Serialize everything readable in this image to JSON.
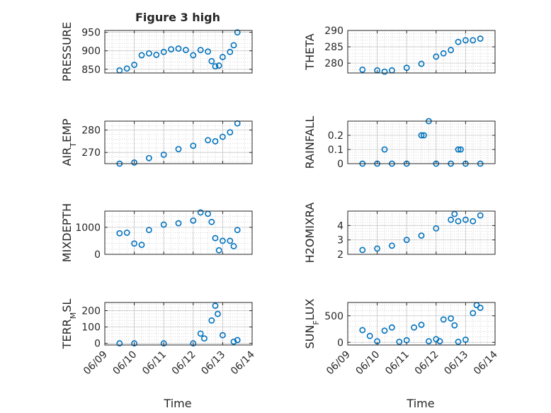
{
  "figure_title": "Figure 3 high",
  "colors": {
    "marker": "#0072BD",
    "axes": "#262626",
    "grid": "#c8c8c8"
  },
  "x_axis": {
    "label": "Time",
    "range": [
      "06/09",
      "06/14"
    ],
    "tick_labels": [
      "06/09",
      "06/10",
      "06/11",
      "06/12",
      "06/13",
      "06/14"
    ]
  },
  "chart_data": [
    {
      "type": "scatter",
      "ylabel": "PRESSURE",
      "ylim": [
        840,
        955
      ],
      "yticks": [
        850,
        900,
        950
      ],
      "grid": true,
      "minor_grid": true,
      "x": [
        "06/09 12:00",
        "06/09 18:00",
        "06/10 00:00",
        "06/10 06:00",
        "06/10 12:00",
        "06/10 18:00",
        "06/11 00:00",
        "06/11 06:00",
        "06/11 12:00",
        "06/11 18:00",
        "06/12 00:00",
        "06/12 06:00",
        "06/12 12:00",
        "06/12 15:00",
        "06/12 18:00",
        "06/12 21:00",
        "06/13 00:00",
        "06/13 06:00",
        "06/13 09:00",
        "06/13 12:00"
      ],
      "values": [
        847,
        852,
        862,
        888,
        893,
        889,
        897,
        904,
        906,
        902,
        888,
        902,
        898,
        872,
        858,
        860,
        883,
        897,
        915,
        950
      ]
    },
    {
      "type": "scatter",
      "ylabel": "THETA",
      "ylim": [
        277,
        290
      ],
      "yticks": [
        280,
        285,
        290
      ],
      "grid": true,
      "minor_grid": true,
      "x": [
        "06/09 12:00",
        "06/10 00:00",
        "06/10 06:00",
        "06/10 12:00",
        "06/11 00:00",
        "06/11 12:00",
        "06/12 00:00",
        "06/12 06:00",
        "06/12 12:00",
        "06/12 18:00",
        "06/13 00:00",
        "06/13 06:00",
        "06/13 12:00"
      ],
      "values": [
        278.0,
        277.8,
        277.4,
        277.8,
        278.6,
        279.8,
        282.0,
        283.0,
        284.0,
        286.5,
        287.0,
        287.0,
        287.5
      ]
    },
    {
      "type": "scatter",
      "ylabel": "AIR_TEMP",
      "ylim": [
        265,
        284
      ],
      "yticks": [
        270,
        280
      ],
      "grid": true,
      "minor_grid": true,
      "x": [
        "06/09 12:00",
        "06/10 00:00",
        "06/10 12:00",
        "06/11 00:00",
        "06/11 12:00",
        "06/12 00:00",
        "06/12 12:00",
        "06/12 18:00",
        "06/13 00:00",
        "06/13 06:00",
        "06/13 12:00"
      ],
      "values": [
        265.0,
        265.5,
        267.5,
        269.0,
        271.5,
        273.0,
        275.5,
        275.0,
        277.0,
        279.0,
        283.0
      ]
    },
    {
      "type": "scatter",
      "ylabel": "RAINFALL",
      "ylim": [
        0,
        0.3
      ],
      "yticks": [
        0,
        0.1,
        0.2
      ],
      "grid": true,
      "minor_grid": true,
      "x": [
        "06/09 12:00",
        "06/10 00:00",
        "06/10 06:00",
        "06/10 12:00",
        "06/11 00:00",
        "06/11 12:00",
        "06/11 14:00",
        "06/11 18:00",
        "06/12 00:00",
        "06/12 12:00",
        "06/12 18:00",
        "06/12 20:00",
        "06/13 00:00",
        "06/13 12:00"
      ],
      "values": [
        0,
        0,
        0.1,
        0,
        0,
        0.2,
        0.2,
        0.3,
        0,
        0,
        0.1,
        0.1,
        0,
        0
      ]
    },
    {
      "type": "scatter",
      "ylabel": "MIXDEPTH",
      "ylim": [
        0,
        1600
      ],
      "yticks": [
        0,
        1000
      ],
      "grid": true,
      "minor_grid": true,
      "x": [
        "06/09 12:00",
        "06/09 18:00",
        "06/10 00:00",
        "06/10 06:00",
        "06/10 12:00",
        "06/11 00:00",
        "06/11 12:00",
        "06/12 00:00",
        "06/12 06:00",
        "06/12 12:00",
        "06/12 15:00",
        "06/12 18:00",
        "06/12 21:00",
        "06/13 00:00",
        "06/13 06:00",
        "06/13 09:00",
        "06/13 12:00"
      ],
      "values": [
        780,
        800,
        400,
        350,
        900,
        1100,
        1150,
        1250,
        1550,
        1500,
        1200,
        600,
        150,
        500,
        500,
        300,
        900
      ]
    },
    {
      "type": "scatter",
      "ylabel": "H2OMIXRA",
      "ylim": [
        2,
        5
      ],
      "yticks": [
        2,
        3,
        4
      ],
      "grid": true,
      "minor_grid": true,
      "x": [
        "06/09 12:00",
        "06/10 00:00",
        "06/10 12:00",
        "06/11 00:00",
        "06/11 12:00",
        "06/12 00:00",
        "06/12 12:00",
        "06/12 15:00",
        "06/12 18:00",
        "06/13 00:00",
        "06/13 06:00",
        "06/13 12:00"
      ],
      "values": [
        2.3,
        2.4,
        2.6,
        3.0,
        3.3,
        3.8,
        4.4,
        4.8,
        4.3,
        4.4,
        4.3,
        4.7
      ]
    },
    {
      "type": "scatter",
      "ylabel": "TERR_MSL",
      "ylim": [
        -10,
        250
      ],
      "yticks": [
        0,
        100,
        200
      ],
      "grid": true,
      "minor_grid": true,
      "x": [
        "06/09 12:00",
        "06/10 00:00",
        "06/11 00:00",
        "06/12 00:00",
        "06/12 06:00",
        "06/12 09:00",
        "06/12 15:00",
        "06/12 18:00",
        "06/12 20:00",
        "06/13 00:00",
        "06/13 09:00",
        "06/13 12:00"
      ],
      "values": [
        0,
        0,
        0,
        0,
        60,
        30,
        140,
        230,
        180,
        50,
        10,
        20
      ]
    },
    {
      "type": "scatter",
      "ylabel": "SUN_FLUX",
      "ylim": [
        -50,
        750
      ],
      "yticks": [
        0,
        500
      ],
      "grid": true,
      "minor_grid": true,
      "x": [
        "06/09 12:00",
        "06/09 18:00",
        "06/10 00:00",
        "06/10 06:00",
        "06/10 12:00",
        "06/10 18:00",
        "06/11 00:00",
        "06/11 06:00",
        "06/11 12:00",
        "06/11 18:00",
        "06/12 00:00",
        "06/12 03:00",
        "06/12 06:00",
        "06/12 12:00",
        "06/12 15:00",
        "06/12 18:00",
        "06/13 00:00",
        "06/13 06:00",
        "06/13 09:00",
        "06/13 12:00"
      ],
      "values": [
        230,
        120,
        20,
        220,
        280,
        10,
        40,
        280,
        330,
        20,
        60,
        20,
        430,
        450,
        320,
        10,
        50,
        550,
        700,
        650
      ]
    }
  ]
}
